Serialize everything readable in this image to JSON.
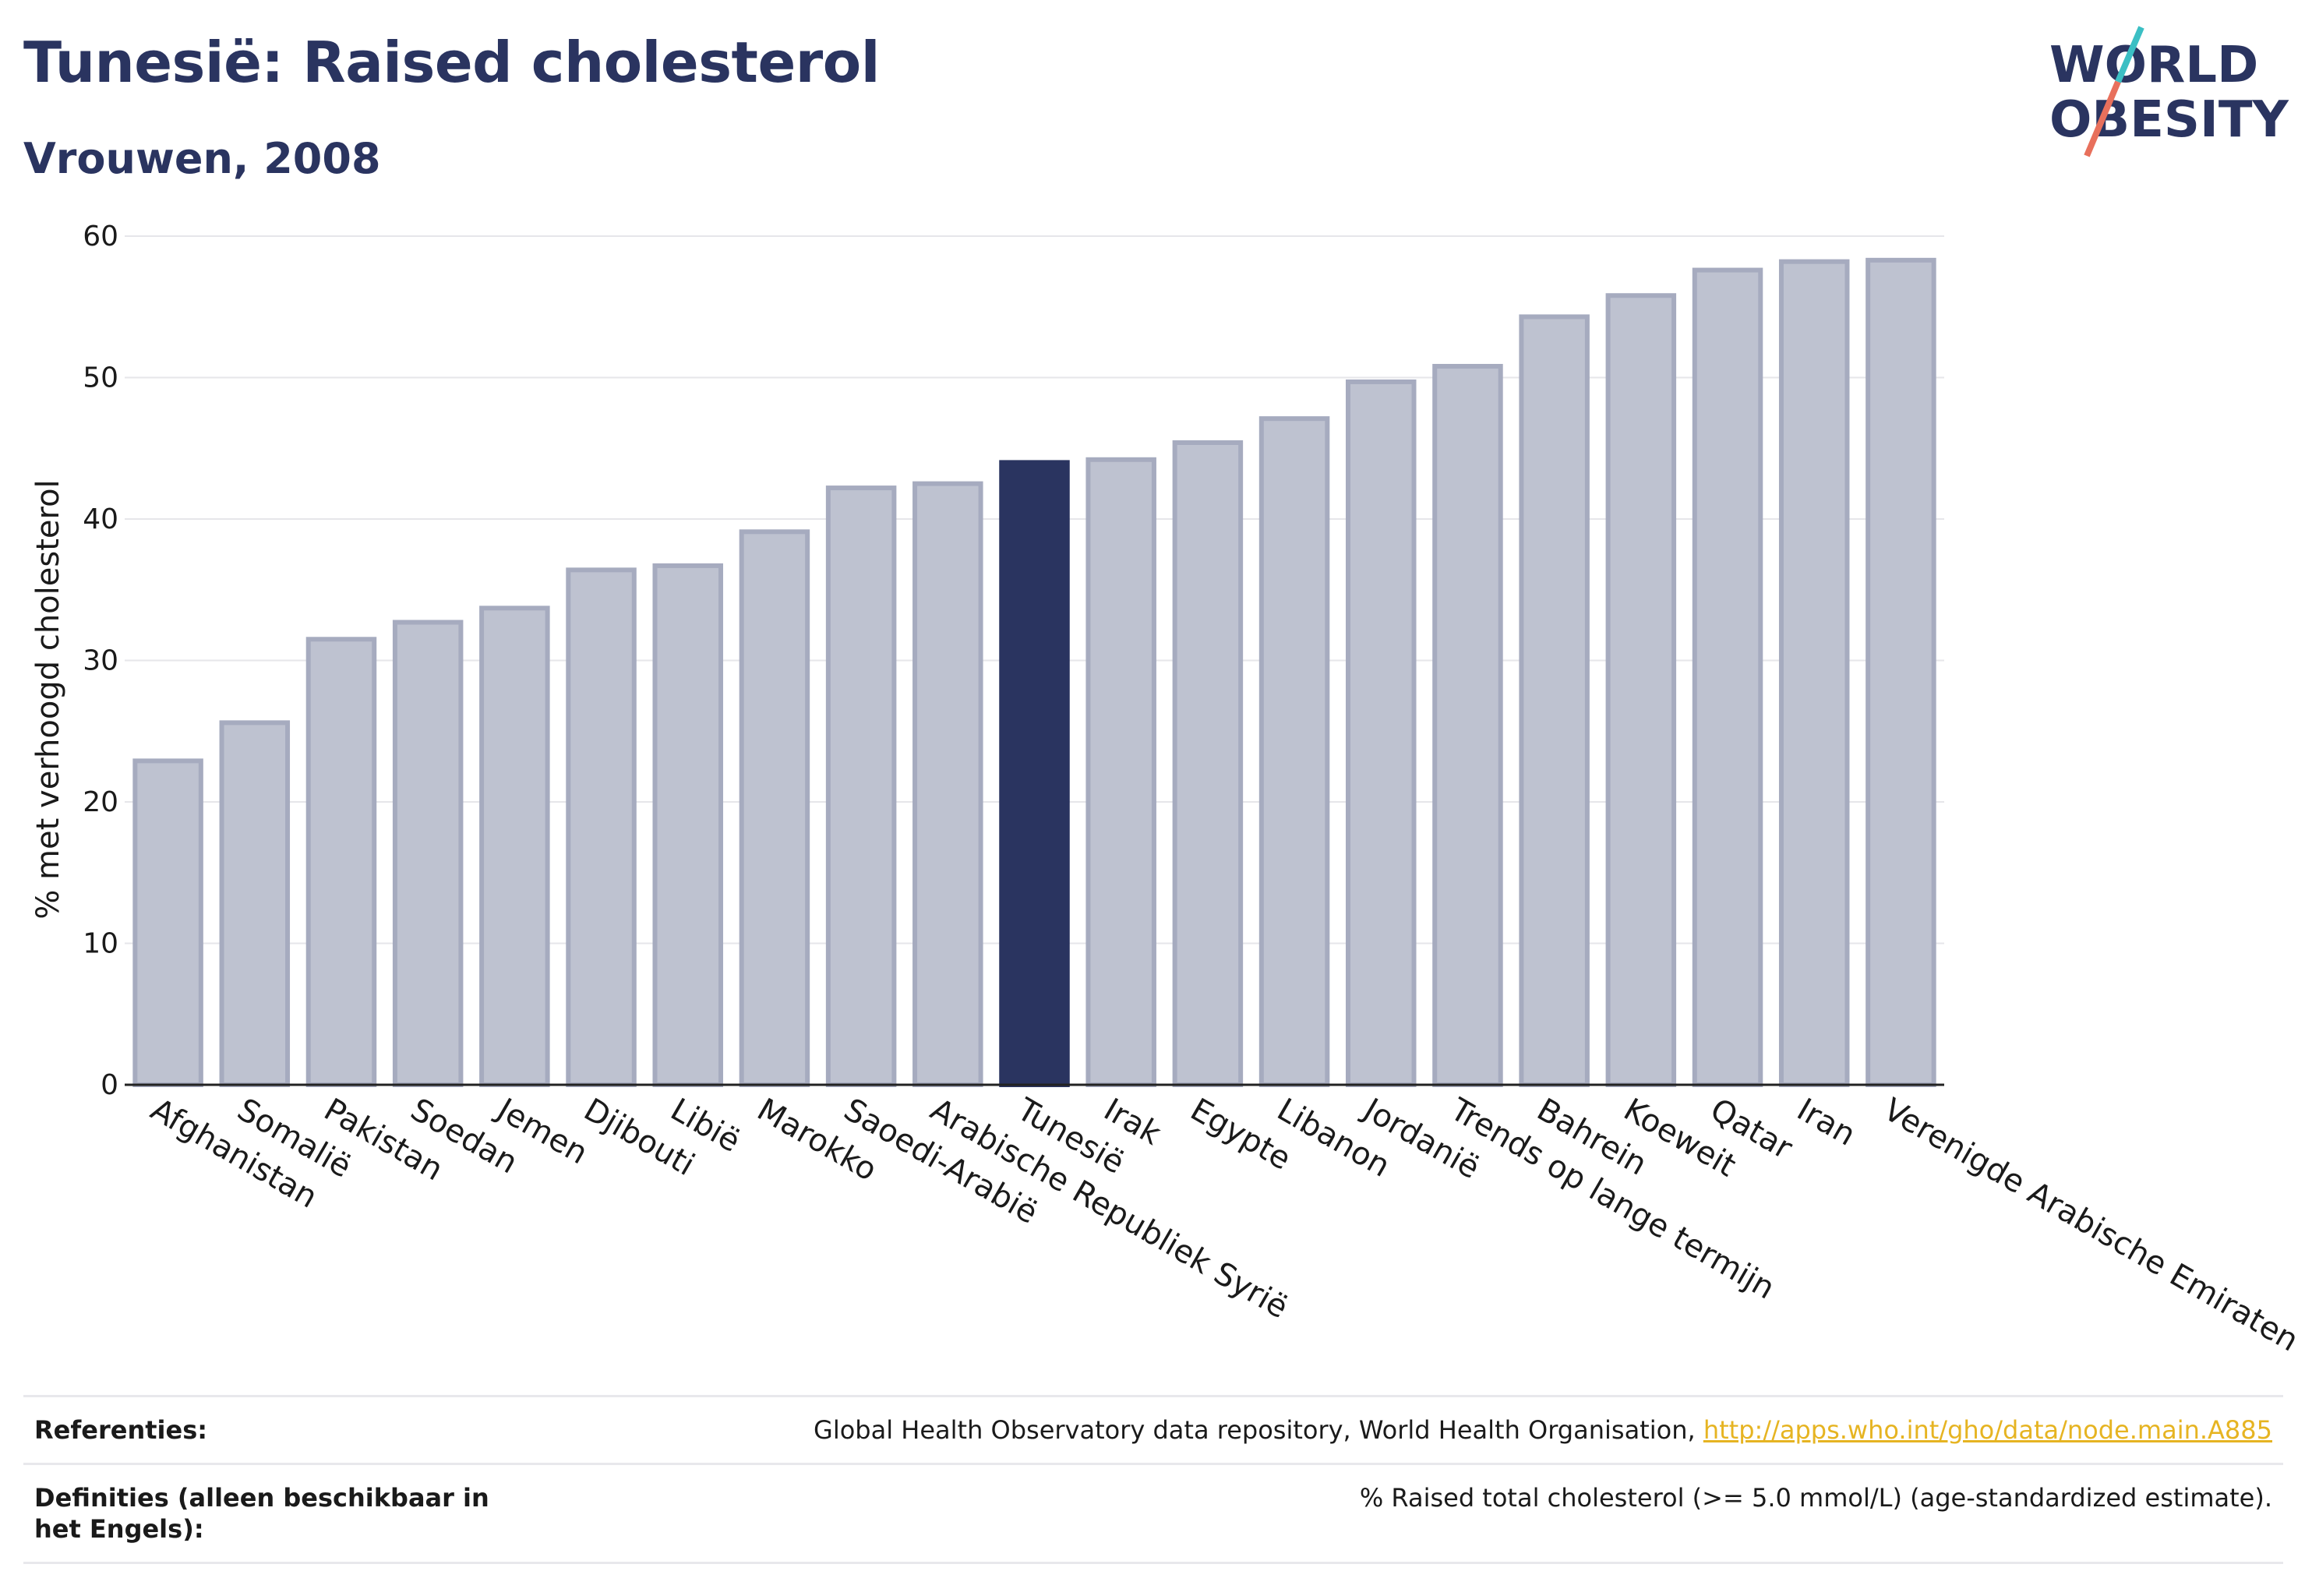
{
  "header": {
    "title": "Tunesië: Raised cholesterol",
    "subtitle": "Vrouwen, 2008"
  },
  "logo": {
    "line1": "WORLD",
    "line2": "OBESITY"
  },
  "chart_data": {
    "type": "bar",
    "ylabel": "% met verhoogd cholesterol",
    "ylim": [
      0,
      60
    ],
    "yticks": [
      0,
      10,
      20,
      30,
      40,
      50,
      60
    ],
    "grid": true,
    "highlight": "Tunesië",
    "categories": [
      "Afghanistan",
      "Somalië",
      "Pakistan",
      "Soedan",
      "Jemen",
      "Djibouti",
      "Libië",
      "Marokko",
      "Saoedi-Arabië",
      "Arabische Republiek Syrië",
      "Tunesië",
      "Irak",
      "Egypte",
      "Libanon",
      "Jordanië",
      "Trends op lange termijn",
      "Bahrein",
      "Koeweit",
      "Qatar",
      "Iran",
      "Verenigde Arabische Emiraten"
    ],
    "values": [
      22.9,
      25.6,
      31.5,
      32.7,
      33.7,
      36.4,
      36.7,
      39.1,
      42.2,
      42.5,
      44.0,
      44.2,
      45.4,
      47.1,
      49.7,
      50.8,
      54.3,
      55.8,
      57.6,
      58.2,
      58.3
    ],
    "colors": {
      "bar": "#bec2d0",
      "bar_edge": "#a6abbf",
      "highlight": "#2a3460"
    }
  },
  "footer": {
    "references_label": "Referenties:",
    "references_text": "Global Health Observatory data repository, World Health Organisation, ",
    "references_link": "http://apps.who.int/gho/data/node.main.A885",
    "definitions_label": "Definities (alleen beschikbaar in het Engels):",
    "definitions_text": "% Raised total cholesterol (>= 5.0 mmol/L) (age-standardized estimate)."
  }
}
